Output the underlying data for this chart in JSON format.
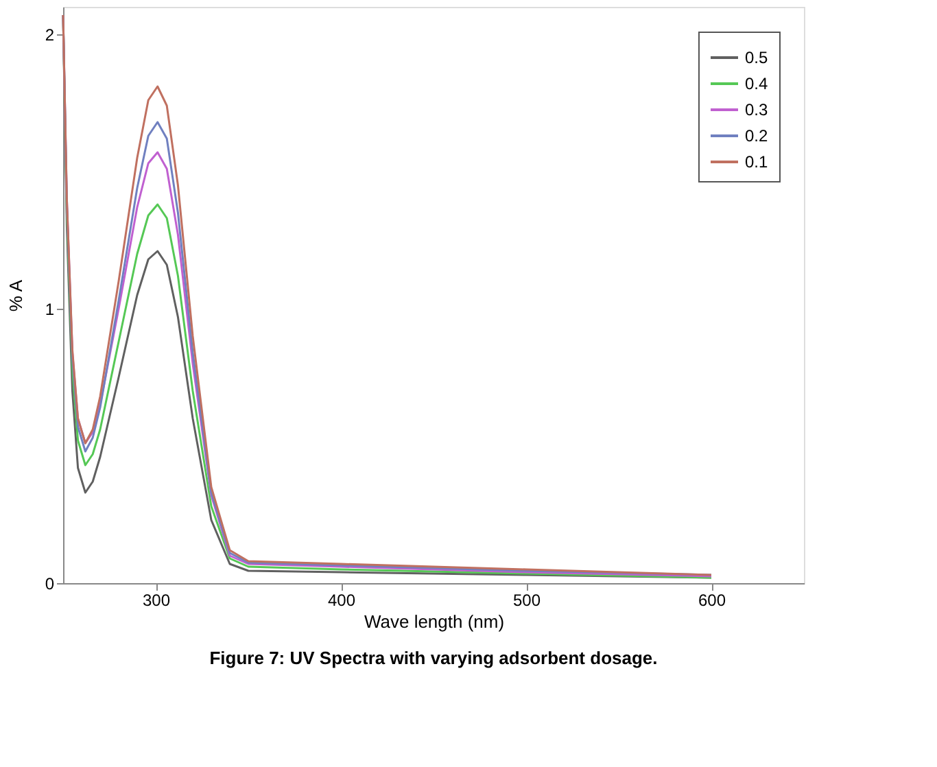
{
  "chart_data": {
    "type": "line",
    "xlabel": "Wave length (nm)",
    "ylabel": "% A",
    "annotations": [
      "Figure 7: UV Spectra with varying adsorbent dosage."
    ],
    "x": [
      250,
      252,
      255,
      258,
      262,
      266,
      270,
      280,
      290,
      296,
      301,
      306,
      312,
      320,
      330,
      340,
      350,
      400,
      500,
      600
    ],
    "series": [
      {
        "name": "0.5",
        "color": "#606060",
        "values": [
          2.07,
          1.3,
          0.7,
          0.42,
          0.33,
          0.37,
          0.46,
          0.75,
          1.05,
          1.18,
          1.21,
          1.16,
          0.97,
          0.6,
          0.23,
          0.07,
          0.045,
          0.04,
          0.03,
          0.02
        ]
      },
      {
        "name": "0.4",
        "color": "#55c855",
        "values": [
          2.07,
          1.35,
          0.78,
          0.52,
          0.43,
          0.47,
          0.56,
          0.88,
          1.2,
          1.34,
          1.38,
          1.33,
          1.12,
          0.7,
          0.28,
          0.09,
          0.06,
          0.05,
          0.035,
          0.02
        ]
      },
      {
        "name": "0.3",
        "color": "#c060d0",
        "values": [
          2.07,
          1.4,
          0.84,
          0.6,
          0.51,
          0.55,
          0.65,
          1.0,
          1.37,
          1.53,
          1.57,
          1.51,
          1.27,
          0.8,
          0.32,
          0.1,
          0.07,
          0.06,
          0.04,
          0.025
        ]
      },
      {
        "name": "0.2",
        "color": "#7080c0",
        "values": [
          2.07,
          1.38,
          0.82,
          0.57,
          0.48,
          0.53,
          0.64,
          1.03,
          1.44,
          1.63,
          1.68,
          1.62,
          1.35,
          0.84,
          0.33,
          0.11,
          0.075,
          0.065,
          0.045,
          0.03
        ]
      },
      {
        "name": "0.1",
        "color": "#c07060",
        "values": [
          2.07,
          1.4,
          0.85,
          0.6,
          0.51,
          0.56,
          0.68,
          1.1,
          1.55,
          1.76,
          1.81,
          1.74,
          1.45,
          0.9,
          0.35,
          0.12,
          0.08,
          0.07,
          0.05,
          0.03
        ]
      }
    ],
    "xlim": [
      250,
      650
    ],
    "xticks": [
      300,
      400,
      500,
      600
    ],
    "ylim": [
      0,
      2.1
    ],
    "yticks": [
      0,
      1,
      2
    ],
    "grid": false,
    "legend": "top right",
    "marker": "none",
    "line_style": "solid"
  }
}
